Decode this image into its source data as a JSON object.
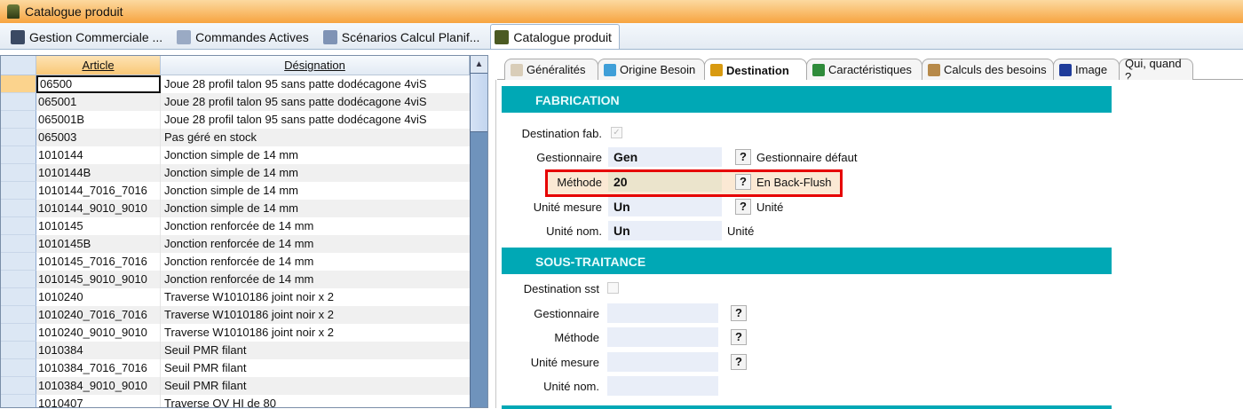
{
  "window": {
    "title": "Catalogue produit"
  },
  "doc_tabs": [
    {
      "label": "Gestion Commerciale ...",
      "color": "#3b4a63"
    },
    {
      "label": "Commandes Actives",
      "color": "#9aaac4"
    },
    {
      "label": "Scénarios Calcul Planif...",
      "color": "#7f93b5"
    },
    {
      "label": "Catalogue produit",
      "color": "#4b5a22",
      "active": true
    }
  ],
  "grid": {
    "columns": [
      "Article",
      "Désignation"
    ],
    "rows": [
      [
        "06500",
        "Joue 28 profil talon 95 sans patte dodécagone 4viS"
      ],
      [
        "065001",
        "Joue 28 profil talon 95 sans patte dodécagone 4viS"
      ],
      [
        "065001B",
        "Joue 28 profil talon 95 sans patte dodécagone 4viS"
      ],
      [
        "065003",
        "Pas géré en stock"
      ],
      [
        "1010144",
        "Jonction simple de 14 mm"
      ],
      [
        "1010144B",
        "Jonction simple de 14 mm"
      ],
      [
        "1010144_7016_7016",
        "Jonction simple de 14 mm"
      ],
      [
        "1010144_9010_9010",
        "Jonction simple de 14 mm"
      ],
      [
        "1010145",
        "Jonction renforcée de 14 mm"
      ],
      [
        "1010145B",
        "Jonction renforcée de 14 mm"
      ],
      [
        "1010145_7016_7016",
        "Jonction renforcée de 14 mm"
      ],
      [
        "1010145_9010_9010",
        "Jonction renforcée de 14 mm"
      ],
      [
        "1010240",
        "Traverse W1010186 joint noir x 2"
      ],
      [
        "1010240_7016_7016",
        "Traverse W1010186 joint noir x 2"
      ],
      [
        "1010240_9010_9010",
        "Traverse W1010186 joint noir x 2"
      ],
      [
        "1010384",
        "Seuil PMR filant"
      ],
      [
        "1010384_7016_7016",
        "Seuil PMR filant"
      ],
      [
        "1010384_9010_9010",
        "Seuil PMR filant"
      ],
      [
        "1010407",
        "Traverse OV HI de 80"
      ]
    ]
  },
  "detail_tabs": [
    {
      "label": "Généralités",
      "icon": "document-icon"
    },
    {
      "label": "Origine Besoin",
      "icon": "origin-icon"
    },
    {
      "label": "Destination",
      "icon": "helmet-icon",
      "active": true
    },
    {
      "label": "Caractéristiques",
      "icon": "excel-icon"
    },
    {
      "label": "Calculs des besoins",
      "icon": "box-icon"
    },
    {
      "label": "Image",
      "icon": "monitor-icon"
    },
    {
      "label": "Qui, quand ?"
    }
  ],
  "fabrication": {
    "title": "FABRICATION",
    "destination_label": "Destination fab.",
    "destination_checked": true,
    "gestionnaire_label": "Gestionnaire",
    "gestionnaire_value": "Gen",
    "gestionnaire_desc": "Gestionnaire défaut",
    "methode_label": "Méthode",
    "methode_value": "20",
    "methode_desc": "En Back-Flush",
    "unite_mesure_label": "Unité mesure",
    "unite_mesure_value": "Un",
    "unite_mesure_desc": "Unité",
    "unite_nom_label": "Unité nom.",
    "unite_nom_value": "Un",
    "unite_nom_desc": "Unité"
  },
  "sous_traitance": {
    "title": "SOUS-TRAITANCE",
    "destination_label": "Destination sst",
    "destination_checked": false,
    "gestionnaire_label": "Gestionnaire",
    "methode_label": "Méthode",
    "unite_mesure_label": "Unité mesure",
    "unite_nom_label": "Unité nom."
  },
  "help_button": "?",
  "colors": {
    "section": "#00a8b5",
    "highlight": "#e60000",
    "title_bar": "#f7a440"
  }
}
